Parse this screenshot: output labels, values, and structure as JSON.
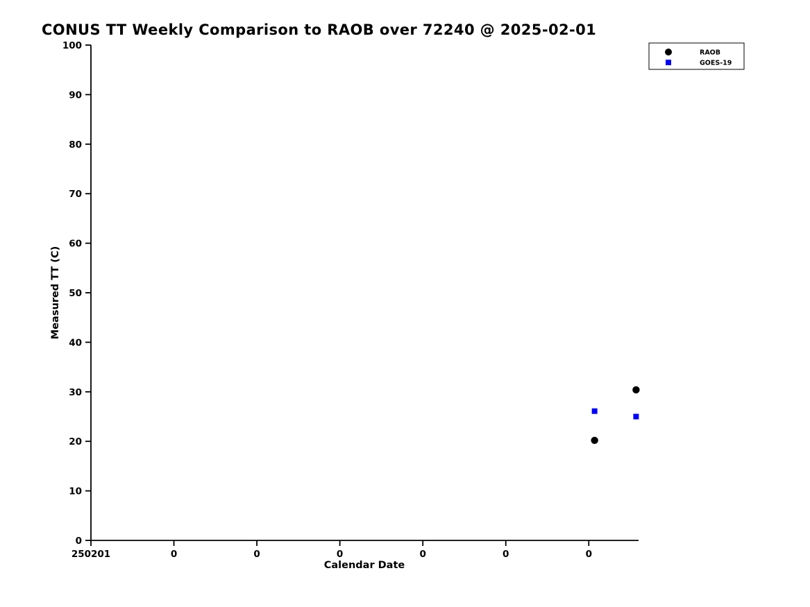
{
  "chart_data": {
    "type": "scatter",
    "title": "CONUS TT Weekly Comparison to RAOB over 72240 @ 2025-02-01",
    "xlabel": "Calendar Date",
    "ylabel": "Measured TT (C)",
    "xlim": [
      0,
      6.6
    ],
    "ylim": [
      0,
      100
    ],
    "yticks": [
      0,
      10,
      20,
      30,
      40,
      50,
      60,
      70,
      80,
      90,
      100
    ],
    "xticks": [
      0,
      1,
      2,
      3,
      4,
      5,
      6
    ],
    "xtick_labels": [
      "250201",
      "0",
      "0",
      "0",
      "0",
      "0",
      "0"
    ],
    "grid": false,
    "legend": {
      "position": "top-right",
      "entries": [
        {
          "label": "RAOB",
          "marker": "circle",
          "color": "#000000"
        },
        {
          "label": "GOES-19",
          "marker": "square",
          "color": "#0000ff"
        }
      ]
    },
    "series": [
      {
        "name": "RAOB",
        "marker": "circle",
        "color": "#000000",
        "points": [
          [
            6.07,
            20.2
          ],
          [
            6.57,
            30.4
          ]
        ]
      },
      {
        "name": "GOES-19",
        "marker": "square",
        "color": "#0000ff",
        "points": [
          [
            6.07,
            26.1
          ],
          [
            6.57,
            25.0
          ]
        ]
      }
    ]
  },
  "colors": {
    "background": "#ffffff",
    "axis": "#000000",
    "text": "#000000"
  }
}
